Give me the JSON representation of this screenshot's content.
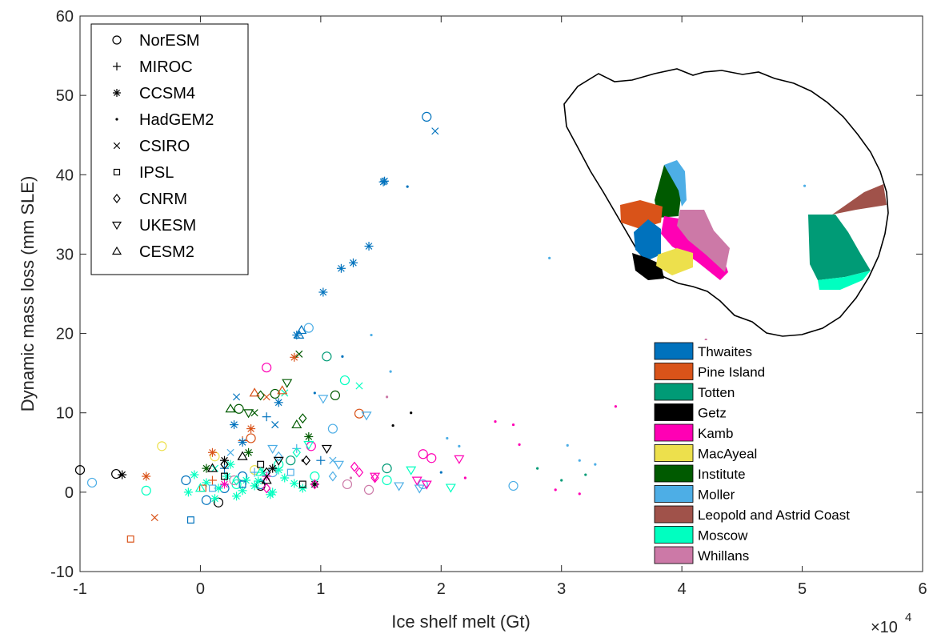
{
  "chart_data": {
    "type": "scatter",
    "title": "",
    "xlabel": "Ice shelf melt (Gt)",
    "ylabel": "Dynamic mass loss (mm SLE)",
    "x_exponent_label": "×10",
    "x_exponent_power": "4",
    "xlim": [
      -1,
      6
    ],
    "ylim": [
      -10,
      60
    ],
    "x_ticks": [
      "-1",
      "0",
      "1",
      "2",
      "3",
      "4",
      "5",
      "6"
    ],
    "y_ticks": [
      "-10",
      "0",
      "10",
      "20",
      "30",
      "40",
      "50",
      "60"
    ],
    "grid": false,
    "legend_models": {
      "placement": "top-left",
      "entries": [
        {
          "name": "NorESM",
          "marker": "circle"
        },
        {
          "name": "MIROC",
          "marker": "plus"
        },
        {
          "name": "CCSM4",
          "marker": "asterisk"
        },
        {
          "name": "HadGEM2",
          "marker": "dot"
        },
        {
          "name": "CSIRO",
          "marker": "x"
        },
        {
          "name": "IPSL",
          "marker": "square"
        },
        {
          "name": "CNRM",
          "marker": "diamond"
        },
        {
          "name": "UKESM",
          "marker": "triangle-down"
        },
        {
          "name": "CESM2",
          "marker": "triangle-up"
        }
      ]
    },
    "legend_regions": {
      "placement": "bottom-right",
      "entries": [
        {
          "name": "Thwaites",
          "color": "#0072BD"
        },
        {
          "name": "Pine Island",
          "color": "#D95319"
        },
        {
          "name": "Totten",
          "color": "#009B76"
        },
        {
          "name": "Getz",
          "color": "#000000"
        },
        {
          "name": "Kamb",
          "color": "#FF00B4"
        },
        {
          "name": "MacAyeal",
          "color": "#EDE04C"
        },
        {
          "name": "Institute",
          "color": "#005A00"
        },
        {
          "name": "Moller",
          "color": "#4DAEE6"
        },
        {
          "name": "Leopold and Astrid Coast",
          "color": "#A0524A"
        },
        {
          "name": "Moscow",
          "color": "#00FFC0"
        },
        {
          "name": "Whillans",
          "color": "#CC79A7"
        }
      ]
    },
    "series": [
      {
        "model": "NorESM",
        "region": "Thwaites",
        "x": [
          -0.12,
          0.05,
          0.2,
          0.35,
          0.5,
          1.88
        ],
        "y": [
          1.5,
          -1.0,
          0.5,
          2.0,
          1.0,
          47.3
        ]
      },
      {
        "model": "NorESM",
        "region": "Moller",
        "x": [
          -0.9,
          0.6,
          0.9,
          1.1,
          1.85,
          2.6
        ],
        "y": [
          1.2,
          2.5,
          20.7,
          8.0,
          1.0,
          0.8
        ]
      },
      {
        "model": "NorESM",
        "region": "Moscow",
        "x": [
          -0.45,
          0.3,
          0.65,
          0.95,
          1.2,
          1.55
        ],
        "y": [
          0.2,
          1.0,
          3.5,
          2.0,
          14.1,
          1.5
        ]
      },
      {
        "model": "NorESM",
        "region": "Getz",
        "x": [
          -1.0,
          -0.7,
          0.15,
          0.5
        ],
        "y": [
          2.8,
          2.3,
          -1.3,
          0.8
        ]
      },
      {
        "model": "NorESM",
        "region": "Kamb",
        "x": [
          0.55,
          1.85,
          1.92,
          0.92
        ],
        "y": [
          15.7,
          4.8,
          4.3,
          5.8
        ]
      },
      {
        "model": "NorESM",
        "region": "MacAyeal",
        "x": [
          -0.32,
          0.12,
          0.45
        ],
        "y": [
          5.8,
          4.5,
          2.8
        ]
      },
      {
        "model": "NorESM",
        "region": "Pine Island",
        "x": [
          1.32,
          0.42
        ],
        "y": [
          9.9,
          6.8
        ]
      },
      {
        "model": "NorESM",
        "region": "Totten",
        "x": [
          0.75,
          1.05,
          1.55
        ],
        "y": [
          4.0,
          17.1,
          3.0
        ]
      },
      {
        "model": "NorESM",
        "region": "Institute",
        "x": [
          0.62,
          1.12,
          0.32
        ],
        "y": [
          12.4,
          12.2,
          10.5
        ]
      },
      {
        "model": "NorESM",
        "region": "Whillans",
        "x": [
          1.22,
          1.4,
          0.28
        ],
        "y": [
          1.0,
          0.3,
          1.5
        ]
      },
      {
        "model": "MIROC",
        "region": "Thwaites",
        "x": [
          0.2,
          0.55,
          1.0
        ],
        "y": [
          3.0,
          9.5,
          4.0
        ]
      },
      {
        "model": "MIROC",
        "region": "Pine Island",
        "x": [
          0.1,
          0.35
        ],
        "y": [
          1.5,
          6.5
        ]
      },
      {
        "model": "MIROC",
        "region": "Moller",
        "x": [
          0.45,
          0.8
        ],
        "y": [
          2.5,
          5.5
        ]
      },
      {
        "model": "CCSM4",
        "region": "Thwaites",
        "x": [
          1.02,
          1.17,
          1.27,
          1.4,
          1.52,
          1.53,
          0.8,
          0.65,
          0.35,
          0.28
        ],
        "y": [
          25.2,
          28.2,
          28.9,
          31.0,
          39.1,
          39.2,
          19.8,
          11.3,
          6.3,
          8.5
        ]
      },
      {
        "model": "CCSM4",
        "region": "Moscow",
        "x": [
          -0.1,
          0.05,
          0.15,
          0.22,
          0.3,
          0.38,
          0.45,
          0.52,
          0.6,
          0.7,
          0.85,
          0.95,
          -0.05,
          0.12,
          0.25,
          0.35,
          0.48,
          0.58,
          0.65,
          0.78
        ],
        "y": [
          0.0,
          1.2,
          0.5,
          2.0,
          -0.5,
          1.5,
          0.8,
          2.5,
          0.0,
          1.8,
          0.5,
          1.0,
          2.2,
          -0.8,
          3.5,
          0.2,
          1.4,
          -0.3,
          2.8,
          1.1
        ]
      },
      {
        "model": "CCSM4",
        "region": "Pine Island",
        "x": [
          -0.45,
          0.1,
          0.42,
          0.78
        ],
        "y": [
          2.0,
          5.0,
          8.0,
          17.0
        ]
      },
      {
        "model": "CCSM4",
        "region": "Getz",
        "x": [
          -0.65,
          0.2,
          0.6,
          0.95
        ],
        "y": [
          2.2,
          4.0,
          3.0,
          1.0
        ]
      },
      {
        "model": "CCSM4",
        "region": "Institute",
        "x": [
          0.05,
          0.4,
          0.9
        ],
        "y": [
          3.0,
          5.0,
          7.0
        ]
      },
      {
        "model": "CCSM4",
        "region": "Kamb",
        "x": [
          0.2,
          0.55
        ],
        "y": [
          1.0,
          2.0
        ]
      },
      {
        "model": "HadGEM2",
        "region": "Moller",
        "x": [
          1.42,
          1.58,
          2.05,
          2.15,
          2.9,
          3.05,
          3.15,
          3.28,
          5.02
        ],
        "y": [
          19.8,
          15.2,
          6.8,
          5.8,
          29.5,
          5.9,
          4.0,
          3.5,
          38.6
        ]
      },
      {
        "model": "HadGEM2",
        "region": "Thwaites",
        "x": [
          1.18,
          1.72,
          0.95,
          2.0
        ],
        "y": [
          17.1,
          38.5,
          12.5,
          2.5
        ]
      },
      {
        "model": "HadGEM2",
        "region": "Kamb",
        "x": [
          2.45,
          2.6,
          2.65,
          2.95,
          3.15,
          3.45,
          2.2
        ],
        "y": [
          8.9,
          8.5,
          6.0,
          0.3,
          -0.2,
          10.8,
          1.8
        ]
      },
      {
        "model": "HadGEM2",
        "region": "Whillans",
        "x": [
          1.25,
          1.55,
          4.2
        ],
        "y": [
          1.8,
          12.0,
          19.2
        ]
      },
      {
        "model": "HadGEM2",
        "region": "Totten",
        "x": [
          2.8,
          3.0,
          3.2
        ],
        "y": [
          3.0,
          1.5,
          2.2
        ]
      },
      {
        "model": "HadGEM2",
        "region": "Getz",
        "x": [
          1.6,
          1.75,
          0.85
        ],
        "y": [
          8.4,
          10.0,
          4.0
        ]
      },
      {
        "model": "CSIRO",
        "region": "Thwaites",
        "x": [
          1.95,
          0.3,
          0.62
        ],
        "y": [
          45.5,
          12.0,
          8.5
        ]
      },
      {
        "model": "CSIRO",
        "region": "Institute",
        "x": [
          0.82,
          0.45
        ],
        "y": [
          17.4,
          10.0
        ]
      },
      {
        "model": "CSIRO",
        "region": "Moscow",
        "x": [
          1.32,
          0.7,
          0.12
        ],
        "y": [
          13.4,
          12.5,
          3.0
        ]
      },
      {
        "model": "CSIRO",
        "region": "Pine Island",
        "x": [
          -0.38,
          0.55
        ],
        "y": [
          -3.2,
          12.0
        ]
      },
      {
        "model": "CSIRO",
        "region": "Moller",
        "x": [
          0.25,
          1.1
        ],
        "y": [
          5.0,
          4.0
        ]
      },
      {
        "model": "IPSL",
        "region": "Pine Island",
        "x": [
          -0.58,
          0.02
        ],
        "y": [
          -5.9,
          0.5
        ]
      },
      {
        "model": "IPSL",
        "region": "Thwaites",
        "x": [
          -0.08,
          0.35
        ],
        "y": [
          -3.5,
          1.0
        ]
      },
      {
        "model": "IPSL",
        "region": "Getz",
        "x": [
          0.2,
          0.5,
          0.85
        ],
        "y": [
          2.0,
          3.5,
          1.0
        ]
      },
      {
        "model": "IPSL",
        "region": "Moller",
        "x": [
          0.1,
          0.75
        ],
        "y": [
          0.5,
          2.5
        ]
      },
      {
        "model": "CNRM",
        "region": "Getz",
        "x": [
          0.2,
          0.55,
          0.88
        ],
        "y": [
          3.5,
          2.5,
          4.0
        ]
      },
      {
        "model": "CNRM",
        "region": "Kamb",
        "x": [
          1.28,
          1.32,
          1.45,
          0.55,
          0.95
        ],
        "y": [
          3.2,
          2.5,
          1.8,
          0.5,
          1.0
        ]
      },
      {
        "model": "CNRM",
        "region": "Institute",
        "x": [
          0.5,
          0.85
        ],
        "y": [
          12.2,
          9.3
        ]
      },
      {
        "model": "CNRM",
        "region": "Moller",
        "x": [
          0.65,
          1.1
        ],
        "y": [
          4.5,
          2.0
        ]
      },
      {
        "model": "CNRM",
        "region": "Moscow",
        "x": [
          0.3,
          0.8
        ],
        "y": [
          1.5,
          5.0
        ]
      },
      {
        "model": "UKESM",
        "region": "Moller",
        "x": [
          1.02,
          1.38,
          1.65,
          1.82,
          0.6,
          1.15
        ],
        "y": [
          11.8,
          9.7,
          0.8,
          0.5,
          5.5,
          3.5
        ]
      },
      {
        "model": "UKESM",
        "region": "Kamb",
        "x": [
          1.8,
          1.88,
          1.45,
          2.15
        ],
        "y": [
          1.5,
          1.0,
          2.0,
          4.2
        ]
      },
      {
        "model": "UKESM",
        "region": "Moscow",
        "x": [
          2.08,
          1.75,
          0.9
        ],
        "y": [
          0.6,
          2.8,
          6.0
        ]
      },
      {
        "model": "UKESM",
        "region": "Institute",
        "x": [
          0.72,
          0.4
        ],
        "y": [
          13.8,
          10.0
        ]
      },
      {
        "model": "UKESM",
        "region": "Getz",
        "x": [
          1.05,
          0.65
        ],
        "y": [
          5.5,
          4.0
        ]
      },
      {
        "model": "CESM2",
        "region": "Thwaites",
        "x": [
          0.82,
          0.84
        ],
        "y": [
          19.8,
          20.4
        ]
      },
      {
        "model": "CESM2",
        "region": "Pine Island",
        "x": [
          0.45,
          0.68
        ],
        "y": [
          12.5,
          12.8
        ]
      },
      {
        "model": "CESM2",
        "region": "Getz",
        "x": [
          0.1,
          0.35,
          0.55
        ],
        "y": [
          3.0,
          4.5,
          1.5
        ]
      },
      {
        "model": "CESM2",
        "region": "Institute",
        "x": [
          0.25,
          0.8
        ],
        "y": [
          10.5,
          8.5
        ]
      },
      {
        "model": "CESM2",
        "region": "Moscow",
        "x": [
          0.0,
          0.5
        ],
        "y": [
          0.5,
          2.5
        ]
      }
    ]
  }
}
